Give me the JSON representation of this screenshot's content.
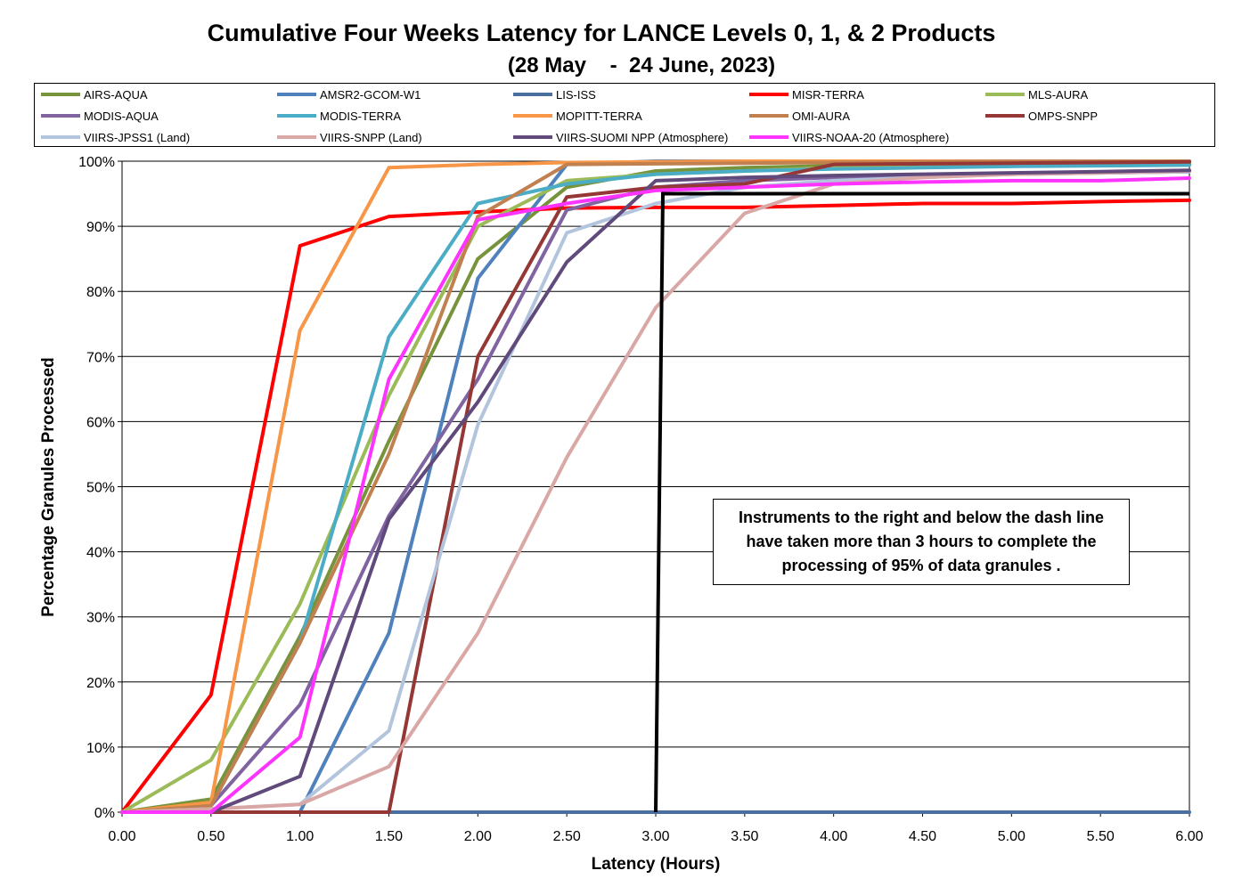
{
  "title": "Cumulative Four Weeks Latency for LANCE Levels 0, 1, & 2 Products",
  "subtitle": "(28 May    -  24 June, 2023)",
  "annotation": "Instruments to the right and below the dash line have taken more than 3 hours to complete the processing of 95% of data granules .",
  "chart_data": {
    "type": "line",
    "title": "Cumulative Four Weeks Latency for LANCE Levels 0, 1, & 2 Products",
    "subtitle": "(28 May    -  24 June, 2023)",
    "xlabel": "Latency (Hours)",
    "ylabel": "Percentage Granules Processed",
    "x": [
      0,
      0.5,
      1,
      1.5,
      2,
      2.5,
      3,
      3.5,
      4,
      4.5,
      5,
      5.5,
      6
    ],
    "x_tick_labels": [
      "0.00",
      "0.50",
      "1.00",
      "1.50",
      "2.00",
      "2.50",
      "3.00",
      "3.50",
      "4.00",
      "4.50",
      "5.00",
      "5.50",
      "6.00"
    ],
    "y_tick_labels": [
      "0%",
      "10%",
      "20%",
      "30%",
      "40%",
      "50%",
      "60%",
      "70%",
      "80%",
      "90%",
      "100%"
    ],
    "xlim": [
      0,
      6
    ],
    "ylim": [
      0,
      100
    ],
    "grid": "horizontal",
    "legend_position": "top",
    "reference_line": {
      "x": 3.0,
      "y": 95,
      "x_end": 6.0,
      "color": "#000000"
    },
    "series": [
      {
        "name": "AIRS-AQUA",
        "color": "#77933C",
        "values": [
          0,
          2,
          27,
          57,
          85,
          96,
          98.5,
          99,
          99.3,
          99.5,
          99.6,
          99.7,
          99.8
        ]
      },
      {
        "name": "AMSR2-GCOM-W1",
        "color": "#4F81BD",
        "values": [
          0,
          0,
          0,
          27.5,
          82,
          99.5,
          100,
          100,
          100,
          100,
          100,
          100,
          100
        ]
      },
      {
        "name": "LIS-ISS",
        "color": "#4A6E9E",
        "values": [
          0,
          0,
          0,
          0,
          0,
          0,
          0,
          0,
          0,
          0,
          0,
          0,
          0
        ]
      },
      {
        "name": "MISR-TERRA",
        "color": "#FF0000",
        "values": [
          0,
          18,
          87,
          91.5,
          92.2,
          92.8,
          92.9,
          92.9,
          93.2,
          93.5,
          93.5,
          93.8,
          94
        ]
      },
      {
        "name": "MLS-AURA",
        "color": "#9BBB59",
        "values": [
          0,
          8,
          32,
          64,
          90,
          97,
          98,
          98.5,
          99,
          99.2,
          99.4,
          99.5,
          99.6
        ]
      },
      {
        "name": "MODIS-AQUA",
        "color": "#8064A2",
        "values": [
          0,
          1,
          16.5,
          45.5,
          66.5,
          92.5,
          96,
          97,
          97.5,
          97.8,
          98,
          98.2,
          98.4
        ]
      },
      {
        "name": "MODIS-TERRA",
        "color": "#4BACC6",
        "values": [
          0,
          1,
          26,
          73,
          93.5,
          96.5,
          98,
          98.5,
          98.8,
          99,
          99.2,
          99.3,
          99.4
        ]
      },
      {
        "name": "MOPITT-TERRA",
        "color": "#F79646",
        "values": [
          0,
          1.5,
          74,
          99,
          99.5,
          99.8,
          99.9,
          100,
          100,
          100,
          100,
          100,
          100
        ]
      },
      {
        "name": "OMI-AURA",
        "color": "#C0804F",
        "values": [
          0,
          1,
          26,
          55,
          91.5,
          99.5,
          99.6,
          99.7,
          99.8,
          99.9,
          100,
          100,
          100
        ]
      },
      {
        "name": "OMPS-SNPP",
        "color": "#953735",
        "values": [
          0,
          0,
          0,
          0,
          70,
          94.5,
          96,
          96.5,
          99.5,
          99.6,
          99.7,
          99.8,
          99.9
        ]
      },
      {
        "name": "VIIRS-JPSS1 (Land)",
        "color": "#B3C4DD",
        "values": [
          0,
          0.5,
          1.2,
          12.5,
          59.5,
          89,
          93.5,
          96,
          97,
          97.5,
          98,
          98.2,
          98.4
        ]
      },
      {
        "name": "VIIRS-SNPP (Land)",
        "color": "#D9A8A6",
        "values": [
          0,
          0.5,
          1.2,
          7,
          27.5,
          54.5,
          77.5,
          92,
          96.5,
          97.5,
          98,
          98.2,
          98.5
        ]
      },
      {
        "name": "VIIRS-SUOMI NPP (Atmosphere)",
        "color": "#604A7B",
        "values": [
          0,
          0,
          5.5,
          45,
          63,
          84.5,
          97,
          97.5,
          97.8,
          98,
          98.2,
          98.4,
          98.6
        ]
      },
      {
        "name": "VIIRS-NOAA-20 (Atmosphere)",
        "color": "#FF33FF",
        "values": [
          0,
          0,
          11.5,
          66.5,
          91,
          93.5,
          95.5,
          96,
          96.5,
          96.8,
          97,
          97,
          97.4
        ]
      }
    ]
  }
}
